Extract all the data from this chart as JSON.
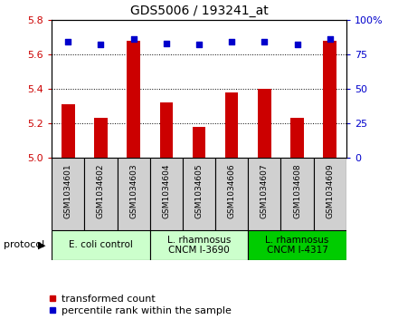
{
  "title": "GDS5006 / 193241_at",
  "samples": [
    "GSM1034601",
    "GSM1034602",
    "GSM1034603",
    "GSM1034604",
    "GSM1034605",
    "GSM1034606",
    "GSM1034607",
    "GSM1034608",
    "GSM1034609"
  ],
  "red_values": [
    5.31,
    5.23,
    5.68,
    5.32,
    5.18,
    5.38,
    5.4,
    5.23,
    5.68
  ],
  "blue_values": [
    84,
    82,
    86,
    83,
    82,
    84,
    84,
    82,
    86
  ],
  "ylim_left": [
    5.0,
    5.8
  ],
  "ylim_right": [
    0,
    100
  ],
  "yticks_left": [
    5.0,
    5.2,
    5.4,
    5.6,
    5.8
  ],
  "yticks_right": [
    0,
    25,
    50,
    75,
    100
  ],
  "left_tick_color": "#cc0000",
  "right_tick_color": "#0000cc",
  "bar_color": "#cc0000",
  "dot_color": "#0000cc",
  "proto_labels": [
    "E. coli control",
    "L. rhamnosus\nCNCM I-3690",
    "L. rhamnosus\nCNCM I-4317"
  ],
  "proto_starts": [
    0,
    3,
    6
  ],
  "proto_ends": [
    3,
    6,
    9
  ],
  "proto_colors": [
    "#ccffcc",
    "#ccffcc",
    "#00cc00"
  ],
  "protocol_label": "protocol",
  "legend_red": "transformed count",
  "legend_blue": "percentile rank within the sample",
  "label_box_color": "#d0d0d0",
  "plot_bg": "#ffffff",
  "ytick_grid": [
    5.2,
    5.4,
    5.6,
    5.8
  ],
  "title_fontsize": 10,
  "bar_width": 0.4
}
